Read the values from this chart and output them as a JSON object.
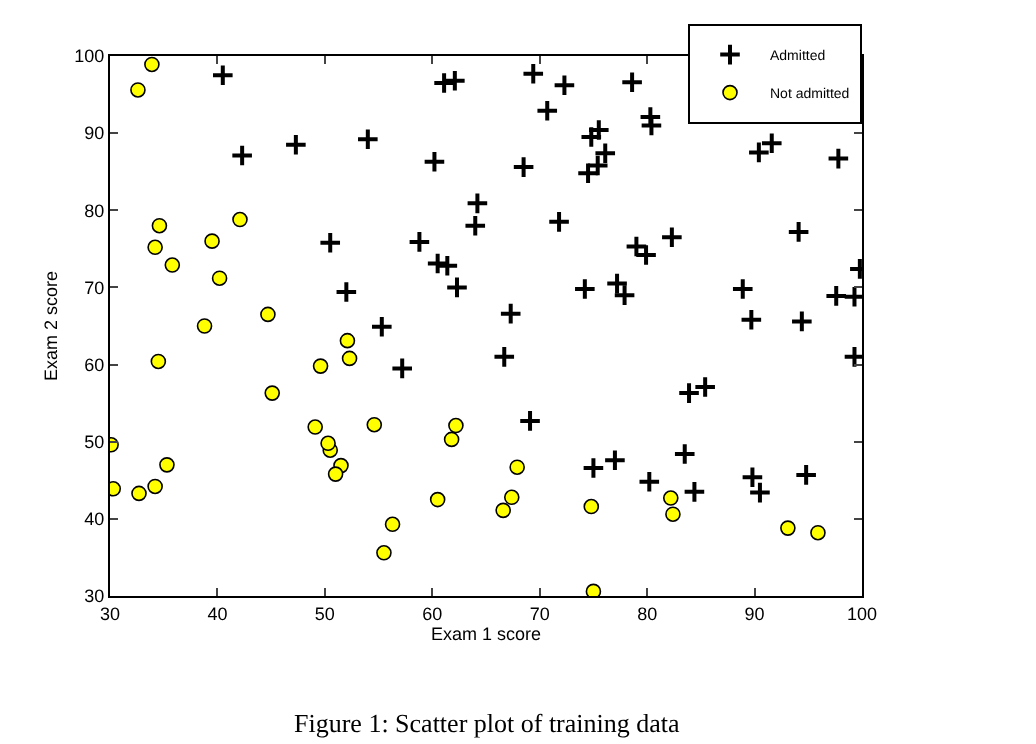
{
  "chart_data": {
    "type": "scatter",
    "xlabel": "Exam 1 score",
    "ylabel": "Exam 2 score",
    "annotations": [
      "Figure 1: Scatter plot of training data"
    ],
    "xlim": [
      30,
      100
    ],
    "xticks": [
      30,
      40,
      50,
      60,
      70,
      80,
      90,
      100
    ],
    "ylim": [
      30,
      100
    ],
    "yticks": [
      30,
      40,
      50,
      60,
      70,
      80,
      90,
      100
    ],
    "grid": false,
    "legend": "top right",
    "series": [
      {
        "name": "Admitted",
        "color": "#000000",
        "marker": "cross",
        "x": [
          60.2,
          79.0,
          61.1,
          75.0,
          76.1,
          84.4,
          82.3,
          69.4,
          54.0,
          69.1,
          70.7,
          77.0,
          89.7,
          77.9,
          62.3,
          80.2,
          61.4,
          85.4,
          52.0,
          64.2,
          83.9,
          94.4,
          77.2,
          97.8,
          62.1,
          91.6,
          79.9,
          99.3,
          90.5,
          97.6,
          74.2,
          71.8,
          75.4,
          40.5,
          80.3,
          66.7,
          64.0,
          72.3,
          60.5,
          58.8,
          99.8,
          47.3,
          50.5,
          88.9,
          94.8,
          67.3,
          57.2,
          80.4,
          68.5,
          75.5,
          78.6,
          94.1,
          90.4,
          74.5,
          89.8,
          83.5,
          42.3,
          99.3,
          55.3,
          74.8
        ],
        "values": [
          86.3,
          75.3,
          96.5,
          46.6,
          87.4,
          43.5,
          76.5,
          97.7,
          89.2,
          52.7,
          92.9,
          47.6,
          65.8,
          69.0,
          70.0,
          44.8,
          72.8,
          57.1,
          69.4,
          80.9,
          56.3,
          65.6,
          70.5,
          86.7,
          96.8,
          88.7,
          74.2,
          61.0,
          43.4,
          68.9,
          69.8,
          78.5,
          85.8,
          97.5,
          92.1,
          61.0,
          78.0,
          96.2,
          73.1,
          75.9,
          72.4,
          88.5,
          75.8,
          69.8,
          45.7,
          66.6,
          59.5,
          91.0,
          85.6,
          90.4,
          96.6,
          77.2,
          87.5,
          84.8,
          45.4,
          48.4,
          87.1,
          68.8,
          64.9,
          89.5
        ]
      },
      {
        "name": "Not admitted",
        "color": "#ffff00",
        "marker": "circle",
        "x": [
          34.6,
          30.3,
          35.8,
          45.1,
          95.9,
          75.0,
          39.5,
          67.9,
          67.4,
          50.5,
          34.2,
          93.1,
          61.8,
          38.8,
          52.1,
          40.2,
          54.6,
          33.9,
          74.8,
          34.2,
          51.5,
          82.4,
          51.0,
          62.2,
          34.5,
          50.3,
          49.6,
          32.6,
          35.3,
          56.3,
          30.1,
          44.7,
          66.6,
          49.1,
          32.7,
          60.5,
          82.2,
          42.1,
          52.3,
          55.5
        ],
        "values": [
          78.0,
          43.9,
          72.9,
          56.3,
          38.2,
          30.6,
          76.0,
          46.7,
          42.8,
          48.9,
          44.2,
          38.8,
          50.3,
          65.0,
          63.1,
          71.2,
          52.2,
          98.9,
          41.6,
          75.2,
          46.9,
          40.6,
          45.8,
          52.1,
          60.4,
          49.8,
          59.8,
          95.6,
          47.0,
          39.3,
          49.6,
          66.5,
          41.1,
          51.9,
          43.3,
          42.5,
          42.7,
          78.8,
          60.8,
          35.6
        ]
      }
    ]
  }
}
